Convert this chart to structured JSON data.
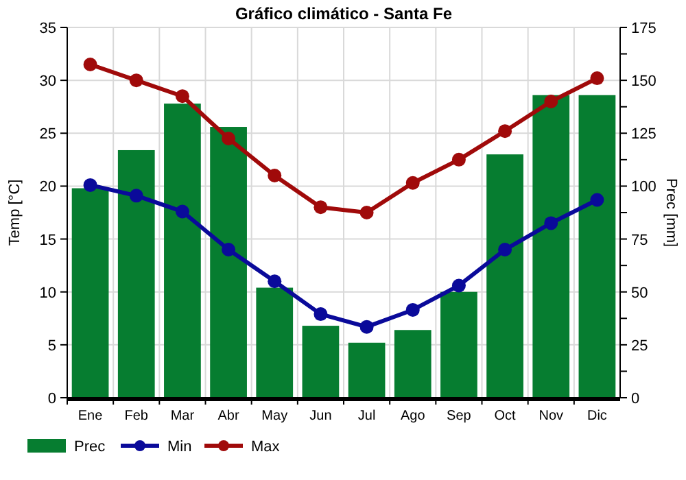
{
  "chart_data": {
    "type": "bar",
    "title": "Gráfico climático - Santa Fe",
    "ylabel": "Temp [°C]",
    "y2label": "Prec [mm]",
    "categories": [
      "Ene",
      "Feb",
      "Mar",
      "Abr",
      "May",
      "Jun",
      "Jul",
      "Ago",
      "Sep",
      "Oct",
      "Nov",
      "Dic"
    ],
    "series": [
      {
        "name": "Prec",
        "axis": "y2",
        "color": "#067d30",
        "values": [
          99,
          117,
          139,
          128,
          52,
          34,
          26,
          32,
          50,
          115,
          143,
          143
        ]
      },
      {
        "name": "Min",
        "type": "line",
        "color": "#0a0a9a",
        "marker": "circle",
        "values": [
          20.1,
          19.1,
          17.6,
          14,
          11,
          7.9,
          6.7,
          8.3,
          10.6,
          14,
          16.5,
          18.7
        ]
      },
      {
        "name": "Max",
        "type": "line",
        "color": "#a00a0a",
        "marker": "circle",
        "values": [
          31.5,
          30,
          28.5,
          24.5,
          21,
          18,
          17.5,
          20.3,
          22.5,
          25.2,
          28,
          30.2
        ]
      }
    ],
    "ylim": [
      0,
      35
    ],
    "yticks": [
      0,
      5,
      10,
      15,
      20,
      25,
      30,
      35
    ],
    "y2lim": [
      0,
      175
    ],
    "y2ticks": [
      0,
      {
        "value": 12.5,
        "label": null
      },
      25,
      {
        "value": 37.5,
        "label": null
      },
      50,
      {
        "value": 62.5,
        "label": null
      },
      75,
      {
        "value": 87.5,
        "label": null
      },
      100,
      {
        "value": 112.5,
        "label": null
      },
      125,
      {
        "value": 137.5,
        "label": null
      },
      150,
      {
        "value": 162.5,
        "label": null
      },
      175
    ],
    "grid": true,
    "legend": "bottom left"
  }
}
